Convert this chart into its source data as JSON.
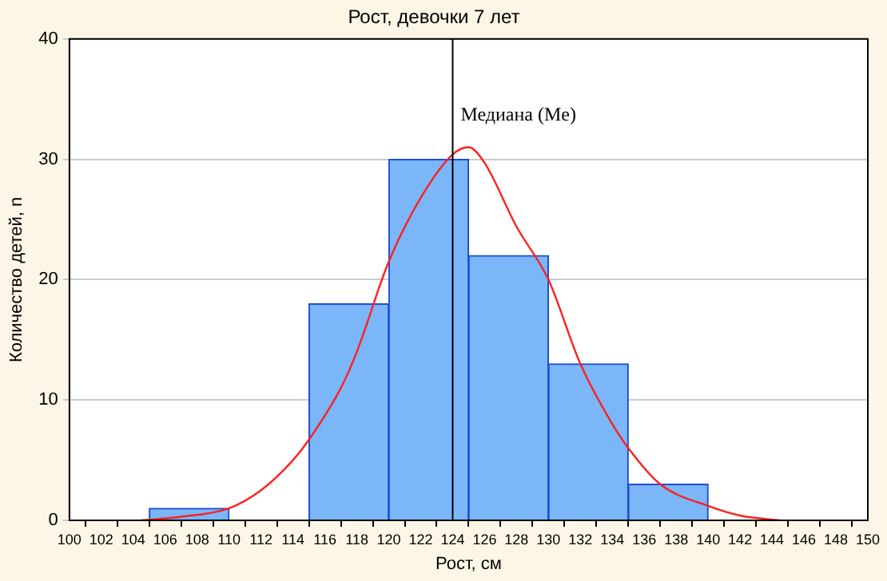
{
  "chart_data": {
    "type": "histogram",
    "title": "Рост, девочки 7 лет",
    "xlabel": "Рост, см",
    "ylabel": "Количество детей, n",
    "bins": [
      105,
      110,
      115,
      120,
      125,
      130,
      135,
      140
    ],
    "series": [
      {
        "type": "histogram",
        "color": "#7ab6f8",
        "values": [
          1,
          0,
          18,
          30,
          22,
          13,
          3
        ]
      },
      {
        "type": "line",
        "color": "#ff2020",
        "x": [
          104.5,
          107,
          110,
          112,
          114,
          115,
          117,
          118,
          120,
          122,
          124,
          125,
          126,
          128,
          130,
          132,
          134,
          135,
          137,
          140,
          142,
          144.5
        ],
        "values": [
          0,
          0.3,
          1,
          2.5,
          5,
          6.7,
          11,
          14,
          21.5,
          26.8,
          30.4,
          31,
          29.7,
          24.4,
          20,
          13,
          8,
          6,
          3,
          1.2,
          0.4,
          0
        ]
      }
    ],
    "ref_lines": [
      {
        "axis": "x",
        "value": 124,
        "label": "Медиана (Me)",
        "color": "#000000"
      }
    ],
    "xlim": [
      100,
      150
    ],
    "xticks": [
      100,
      102,
      104,
      106,
      108,
      110,
      112,
      114,
      116,
      118,
      120,
      122,
      124,
      126,
      128,
      130,
      132,
      134,
      136,
      138,
      140,
      142,
      144,
      146,
      148,
      150
    ],
    "ylim": [
      0,
      40
    ],
    "yticks": [
      0,
      10,
      20,
      30,
      40
    ],
    "grid": "y",
    "legend": false
  }
}
